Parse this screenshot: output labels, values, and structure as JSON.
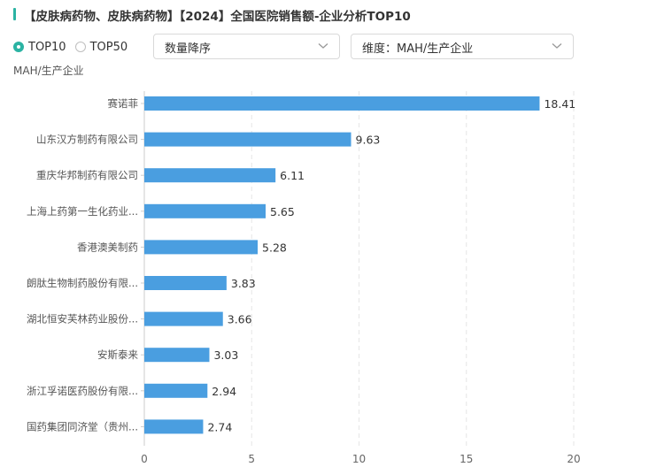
{
  "header": {
    "title": "【皮肤病药物、皮肤病药物】【2024】全国医院销售额-企业分析TOP10"
  },
  "controls": {
    "radios": [
      {
        "label": "TOP10",
        "checked": true
      },
      {
        "label": "TOP50",
        "checked": false
      }
    ],
    "sort_select": {
      "value": "数量降序"
    },
    "dimension_select": {
      "value": "维度：MAH/生产企业"
    }
  },
  "colors": {
    "accent": "#2bb3a3",
    "bar": "#4a9ee0"
  },
  "icons": {
    "dropdown": "chevron-down-icon"
  },
  "chart_data": {
    "type": "bar",
    "orientation": "horizontal",
    "title": "",
    "ylabel": "MAH/生产企业",
    "xlabel": "",
    "categories": [
      "赛诺菲",
      "山东汉方制药有限公司",
      "重庆华邦制药有限公司",
      "上海上药第一生化药业...",
      "香港澳美制药",
      "朗肽生物制药股份有限...",
      "湖北恒安芙林药业股份...",
      "安斯泰来",
      "浙江孚诺医药股份有限...",
      "国药集团同济堂（贵州..."
    ],
    "values": [
      18.41,
      9.63,
      6.11,
      5.65,
      5.28,
      3.83,
      3.66,
      3.03,
      2.94,
      2.74
    ],
    "value_labels": [
      "18.41",
      "9.63",
      "6.11",
      "5.65",
      "5.28",
      "3.83",
      "3.66",
      "3.03",
      "2.94",
      "2.74"
    ],
    "xlim": [
      0,
      20
    ],
    "x_ticks": [
      0,
      5,
      10,
      15,
      20
    ],
    "x_tick_labels": [
      "0",
      "5",
      "10",
      "15",
      "20"
    ],
    "grid": true,
    "legend": "none"
  }
}
